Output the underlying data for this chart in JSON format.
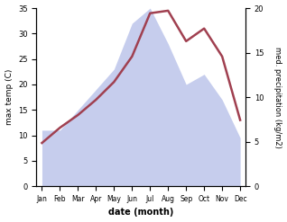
{
  "months": [
    "Jan",
    "Feb",
    "Mar",
    "Apr",
    "May",
    "Jun",
    "Jul",
    "Aug",
    "Sep",
    "Oct",
    "Nov",
    "Dec"
  ],
  "temperature": [
    8.5,
    11.5,
    14.0,
    17.0,
    20.5,
    25.5,
    34.0,
    34.5,
    28.5,
    31.0,
    25.5,
    13.0
  ],
  "precipitation": [
    11.0,
    11.0,
    15.0,
    19.0,
    23.0,
    32.0,
    35.0,
    28.0,
    20.0,
    22.0,
    17.0,
    9.5
  ],
  "temp_color": "#a04050",
  "precip_fill_color": "#c0c8ec",
  "ylabel_left": "max temp (C)",
  "ylabel_right": "med. precipitation (kg/m2)",
  "xlabel": "date (month)",
  "ylim_left": [
    0,
    35
  ],
  "ylim_right": [
    0,
    20
  ],
  "yticks_left": [
    0,
    5,
    10,
    15,
    20,
    25,
    30,
    35
  ],
  "yticks_right": [
    0,
    5,
    10,
    15,
    20
  ],
  "background_color": "#ffffff"
}
